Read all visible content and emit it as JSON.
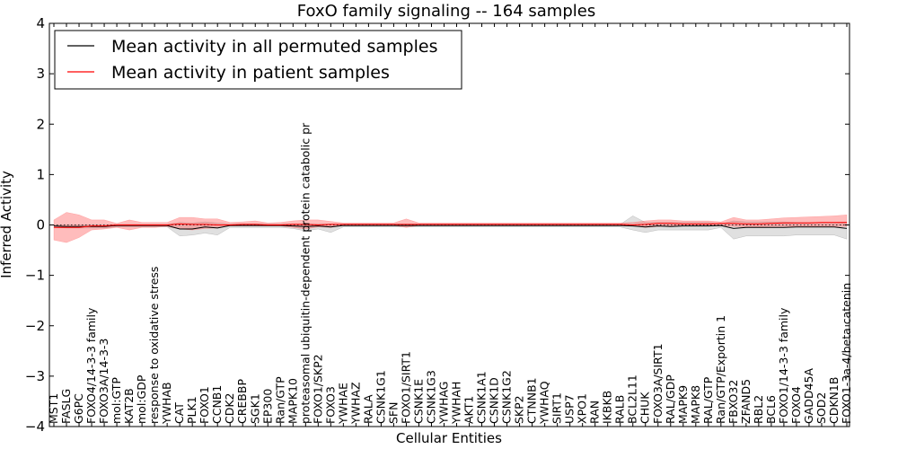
{
  "chart_data": {
    "type": "line",
    "title": "FoxO family signaling -- 164 samples",
    "xlabel": "Cellular Entities",
    "ylabel": "Inferred Activity",
    "ylim": [
      -4,
      4
    ],
    "yticks": [
      "4",
      "3",
      "2",
      "1",
      "0",
      "−1",
      "−2",
      "−3",
      "−4"
    ],
    "ytick_values": [
      4,
      3,
      2,
      1,
      0,
      -1,
      -2,
      -3,
      -4
    ],
    "legend": {
      "placement": "top-left",
      "entries": [
        {
          "label": "Mean activity in all permuted samples",
          "color": "#000000"
        },
        {
          "label": "Mean activity in patient samples",
          "color": "#ff0000"
        }
      ]
    },
    "colors": {
      "permuted_line": "#000000",
      "permuted_band": "#bbbbbb",
      "patient_line": "#ff0000",
      "patient_band": "#ff4040"
    },
    "categories": [
      "MST1",
      "FASLG",
      "G6PC",
      "FOXO4/14-3-3 family",
      "FOXO3A/14-3-3",
      "mol:GTP",
      "KAT2B",
      "mol:GDP",
      "response to oxidative stress",
      "YWHAB",
      "CAT",
      "PLK1",
      "FOXO1",
      "CCNB1",
      "CDK2",
      "CREBBP",
      "SGK1",
      "EP300",
      "Ran/GTP",
      "MAPK10",
      "proteasomal ubiquitin-dependent protein catabolic pr",
      "FOXO1/SKP2",
      "FOXO3",
      "YWHAE",
      "YWHAZ",
      "RALA",
      "CSNK1G1",
      "SFN",
      "FOXO1/SIRT1",
      "CSNK1E",
      "CSNK1G3",
      "YWHAG",
      "YWHAH",
      "AKT1",
      "CSNK1A1",
      "CSNK1D",
      "CSNK1G2",
      "SKP2",
      "CTNNB1",
      "YWHAQ",
      "SIRT1",
      "USP7",
      "XPO1",
      "RAN",
      "IKBKB",
      "RALB",
      "BCL2L11",
      "CHUK",
      "FOXO3A/SIRT1",
      "RAL/GDP",
      "MAPK9",
      "MAPK8",
      "RAL/GTP",
      "Ran/GTP/Exportin 1",
      "FBXO32",
      "ZFAND5",
      "RBL2",
      "BCL6",
      "FOXO1/14-3-3 family",
      "FOXO4",
      "GADD45A",
      "SOD2",
      "CDKN1B",
      "FOXO1-3a-4/beta catenin"
    ],
    "series": [
      {
        "name": "Mean activity in all permuted samples",
        "values": [
          -0.02,
          -0.03,
          -0.03,
          -0.03,
          -0.03,
          -0.01,
          -0.01,
          -0.01,
          -0.01,
          -0.01,
          -0.08,
          -0.08,
          -0.04,
          -0.06,
          -0.01,
          -0.01,
          -0.01,
          -0.01,
          -0.01,
          -0.02,
          -0.03,
          -0.02,
          -0.04,
          -0.01,
          -0.01,
          -0.01,
          -0.01,
          -0.01,
          -0.01,
          -0.01,
          -0.01,
          -0.01,
          -0.01,
          -0.01,
          -0.01,
          -0.01,
          -0.01,
          -0.01,
          -0.01,
          -0.01,
          -0.01,
          -0.01,
          -0.01,
          -0.01,
          -0.01,
          -0.01,
          -0.02,
          -0.04,
          -0.02,
          -0.03,
          -0.02,
          -0.02,
          -0.02,
          -0.01,
          -0.07,
          -0.05,
          -0.05,
          -0.05,
          -0.05,
          -0.04,
          -0.04,
          -0.04,
          -0.04,
          -0.07
        ],
        "lower": [
          -0.05,
          -0.06,
          -0.06,
          -0.06,
          -0.06,
          -0.04,
          -0.04,
          -0.04,
          -0.04,
          -0.04,
          -0.22,
          -0.2,
          -0.16,
          -0.2,
          -0.05,
          -0.05,
          -0.05,
          -0.05,
          -0.05,
          -0.07,
          -0.12,
          -0.08,
          -0.15,
          -0.04,
          -0.04,
          -0.04,
          -0.04,
          -0.04,
          -0.04,
          -0.04,
          -0.04,
          -0.04,
          -0.04,
          -0.04,
          -0.04,
          -0.04,
          -0.04,
          -0.04,
          -0.04,
          -0.04,
          -0.04,
          -0.04,
          -0.04,
          -0.04,
          -0.04,
          -0.04,
          -0.1,
          -0.15,
          -0.1,
          -0.1,
          -0.1,
          -0.1,
          -0.1,
          -0.05,
          -0.28,
          -0.22,
          -0.22,
          -0.22,
          -0.22,
          -0.2,
          -0.2,
          -0.2,
          -0.2,
          -0.28
        ],
        "upper": [
          0.0,
          0.0,
          0.0,
          0.0,
          0.0,
          0.01,
          0.01,
          0.01,
          0.01,
          0.01,
          0.05,
          0.04,
          0.06,
          0.04,
          0.02,
          0.02,
          0.02,
          0.02,
          0.02,
          0.02,
          0.02,
          0.02,
          0.02,
          0.01,
          0.01,
          0.01,
          0.01,
          0.01,
          0.01,
          0.01,
          0.01,
          0.01,
          0.01,
          0.01,
          0.01,
          0.01,
          0.01,
          0.01,
          0.01,
          0.01,
          0.01,
          0.01,
          0.01,
          0.01,
          0.01,
          0.01,
          0.18,
          0.05,
          0.05,
          0.05,
          0.05,
          0.05,
          0.05,
          0.02,
          0.08,
          0.06,
          0.06,
          0.06,
          0.06,
          0.05,
          0.05,
          0.05,
          0.05,
          0.06
        ]
      },
      {
        "name": "Mean activity in patient samples",
        "values": [
          -0.05,
          -0.05,
          -0.05,
          -0.02,
          -0.02,
          0.0,
          0.0,
          0.0,
          0.0,
          0.0,
          0.02,
          0.01,
          0.01,
          0.0,
          0.0,
          0.01,
          0.01,
          0.0,
          0.0,
          0.01,
          0.01,
          0.0,
          0.01,
          0.01,
          0.01,
          0.01,
          0.01,
          0.01,
          0.01,
          0.01,
          0.01,
          0.01,
          0.01,
          0.01,
          0.01,
          0.01,
          0.01,
          0.01,
          0.01,
          0.01,
          0.01,
          0.01,
          0.01,
          0.01,
          0.01,
          0.01,
          0.0,
          0.01,
          0.03,
          0.03,
          0.02,
          0.02,
          0.02,
          0.03,
          0.03,
          0.02,
          0.02,
          0.03,
          0.04,
          0.04,
          0.04,
          0.05,
          0.05,
          0.05
        ],
        "lower": [
          -0.3,
          -0.35,
          -0.25,
          -0.1,
          -0.08,
          -0.05,
          -0.1,
          -0.05,
          -0.05,
          -0.03,
          -0.08,
          -0.1,
          -0.07,
          -0.06,
          -0.02,
          -0.02,
          -0.02,
          -0.02,
          -0.02,
          -0.05,
          -0.08,
          -0.04,
          -0.05,
          -0.01,
          -0.01,
          -0.01,
          -0.01,
          -0.01,
          -0.05,
          -0.01,
          -0.01,
          -0.01,
          -0.01,
          -0.01,
          -0.01,
          -0.01,
          -0.01,
          -0.01,
          -0.01,
          -0.01,
          -0.01,
          -0.01,
          -0.01,
          -0.01,
          -0.01,
          -0.01,
          -0.02,
          -0.05,
          -0.03,
          -0.02,
          -0.02,
          -0.02,
          -0.02,
          -0.02,
          -0.03,
          -0.04,
          -0.04,
          -0.03,
          -0.03,
          -0.03,
          -0.03,
          -0.03,
          -0.03,
          -0.03
        ],
        "upper": [
          0.1,
          0.25,
          0.2,
          0.1,
          0.1,
          0.03,
          0.1,
          0.05,
          0.05,
          0.05,
          0.15,
          0.15,
          0.12,
          0.12,
          0.05,
          0.06,
          0.08,
          0.04,
          0.05,
          0.08,
          0.1,
          0.1,
          0.07,
          0.04,
          0.04,
          0.04,
          0.04,
          0.04,
          0.12,
          0.04,
          0.04,
          0.04,
          0.04,
          0.04,
          0.04,
          0.04,
          0.04,
          0.04,
          0.04,
          0.04,
          0.04,
          0.04,
          0.04,
          0.04,
          0.04,
          0.04,
          0.05,
          0.08,
          0.1,
          0.1,
          0.08,
          0.08,
          0.08,
          0.06,
          0.15,
          0.1,
          0.1,
          0.12,
          0.14,
          0.15,
          0.16,
          0.17,
          0.18,
          0.2
        ]
      }
    ]
  }
}
